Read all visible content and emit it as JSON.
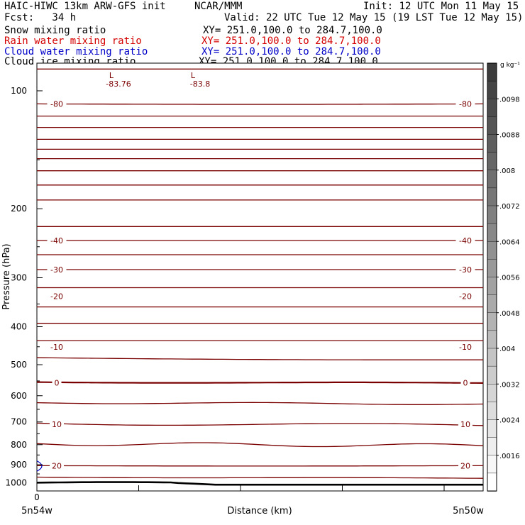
{
  "header": {
    "model": "HAIC-HIWC 13km ARW-GFS init",
    "org": "NCAR/MMM",
    "init": "Init: 12 UTC Mon 11 May 15",
    "fcst": "Fcst:   34 h",
    "valid": "Valid: 22 UTC Tue 12 May 15 (19 LST Tue 12 May 15)"
  },
  "fields": [
    {
      "label": "Snow mixing ratio",
      "xy": "XY= 251.0,100.0 to 284.7,100.0",
      "color": "#000000"
    },
    {
      "label": "Rain water mixing ratio",
      "xy": "XY= 251.0,100.0 to 284.7,100.0",
      "color": "#d40000"
    },
    {
      "label": "Cloud water mixing ratio",
      "xy": "XY= 251.0,100.0 to 284.7,100.0",
      "color": "#0000c8"
    },
    {
      "label": "Cloud ice mixing ratio",
      "xy": "XY= 251.0,100.0 to 284.7,100.0",
      "color": "#000000"
    }
  ],
  "chart_data": {
    "type": "line",
    "title": "",
    "ylabel": "Pressure (hPa)",
    "xlabel": "Distance (km)",
    "y_scale": "log",
    "y_inverted": true,
    "ylim": [
      1050,
      85
    ],
    "y_ticks": [
      100,
      200,
      300,
      400,
      500,
      600,
      700,
      800,
      900,
      1000
    ],
    "xlim": [
      0,
      1
    ],
    "x_tick_labels": [
      "0"
    ],
    "x_end_labels": {
      "left": "5n54w",
      "right": "5n50w"
    },
    "contour_color": "#7a0000",
    "contour_values": [
      "-80",
      "-40",
      "-30",
      "-20",
      "-10",
      "0",
      "10",
      "20"
    ],
    "low_centers": [
      {
        "symbol": "L",
        "value": "-83.76"
      },
      {
        "symbol": "L",
        "value": "-83.8"
      }
    ],
    "colorbar": {
      "units": "g kg⁻¹",
      "labels": [
        ".0098",
        ".0088",
        ".008",
        ".0072",
        ".0064",
        ".0056",
        ".0048",
        ".004",
        ".0032",
        ".0024",
        ".0016"
      ]
    }
  }
}
